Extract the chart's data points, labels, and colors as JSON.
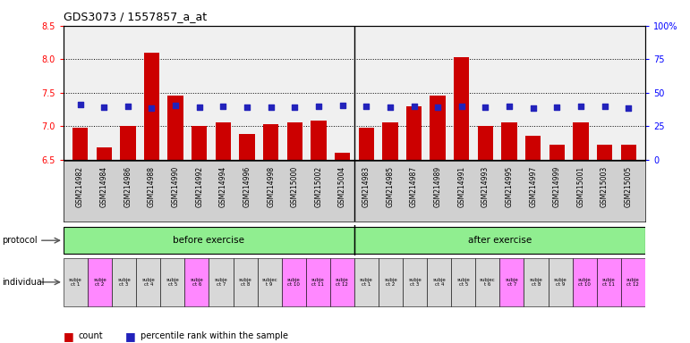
{
  "title": "GDS3073 / 1557857_a_at",
  "samples": [
    "GSM214982",
    "GSM214984",
    "GSM214986",
    "GSM214988",
    "GSM214990",
    "GSM214992",
    "GSM214994",
    "GSM214996",
    "GSM214998",
    "GSM215000",
    "GSM215002",
    "GSM215004",
    "GSM214983",
    "GSM214985",
    "GSM214987",
    "GSM214989",
    "GSM214991",
    "GSM214993",
    "GSM214995",
    "GSM214997",
    "GSM214999",
    "GSM215001",
    "GSM215003",
    "GSM215005"
  ],
  "bar_values": [
    6.98,
    6.68,
    7.0,
    8.1,
    7.45,
    7.0,
    7.05,
    6.88,
    7.03,
    7.05,
    7.08,
    6.6,
    6.98,
    7.05,
    7.3,
    7.45,
    8.03,
    7.0,
    7.05,
    6.85,
    6.72,
    7.05,
    6.72,
    6.72
  ],
  "percentile_values": [
    7.32,
    7.28,
    7.3,
    7.27,
    7.31,
    7.28,
    7.29,
    7.28,
    7.28,
    7.28,
    7.29,
    7.31,
    7.29,
    7.28,
    7.3,
    7.28,
    7.3,
    7.28,
    7.29,
    7.27,
    7.28,
    7.29,
    7.29,
    7.27
  ],
  "ylim_left": [
    6.5,
    8.5
  ],
  "ylim_right": [
    0,
    100
  ],
  "yticks_left": [
    6.5,
    7.0,
    7.5,
    8.0,
    8.5
  ],
  "yticks_right": [
    0,
    25,
    50,
    75,
    100
  ],
  "ytick_labels_right": [
    "0",
    "25",
    "50",
    "75",
    "100%"
  ],
  "bar_color": "#cc0000",
  "percentile_color": "#2222bb",
  "baseline": 6.5,
  "hlines": [
    7.0,
    7.5,
    8.0
  ],
  "protocol_labels": [
    "before exercise",
    "after exercise"
  ],
  "protocol_color": "#90ee90",
  "individual_labels_before": [
    "subje\nct 1",
    "subje\nct 2",
    "subje\nct 3",
    "subje\nct 4",
    "subje\nct 5",
    "subje\nct 6",
    "subje\nct 7",
    "subje\nct 8",
    "subjec\nt 9",
    "subje\nct 10",
    "subje\nct 11",
    "subje\nct 12"
  ],
  "individual_labels_after": [
    "subje\nct 1",
    "subje\nct 2",
    "subje\nct 3",
    "subje\nct 4",
    "subje\nct 5",
    "subjec\nt 6",
    "subje\nct 7",
    "subje\nct 8",
    "subje\nct 9",
    "subje\nct 10",
    "subje\nct 11",
    "subje\nct 12"
  ],
  "individual_colors_before": [
    "#d8d8d8",
    "#ff88ff",
    "#d8d8d8",
    "#d8d8d8",
    "#d8d8d8",
    "#ff88ff",
    "#d8d8d8",
    "#d8d8d8",
    "#d8d8d8",
    "#ff88ff",
    "#ff88ff",
    "#ff88ff"
  ],
  "individual_colors_after": [
    "#d8d8d8",
    "#d8d8d8",
    "#d8d8d8",
    "#d8d8d8",
    "#d8d8d8",
    "#d8d8d8",
    "#ff88ff",
    "#d8d8d8",
    "#d8d8d8",
    "#ff88ff",
    "#ff88ff",
    "#ff88ff"
  ],
  "n_before": 12,
  "n_after": 12,
  "background_color": "#ffffff",
  "plot_bg_color": "#f0f0f0",
  "xlabel_bg_color": "#d0d0d0",
  "separator_color": "#000000",
  "left_label_color": "#888888"
}
